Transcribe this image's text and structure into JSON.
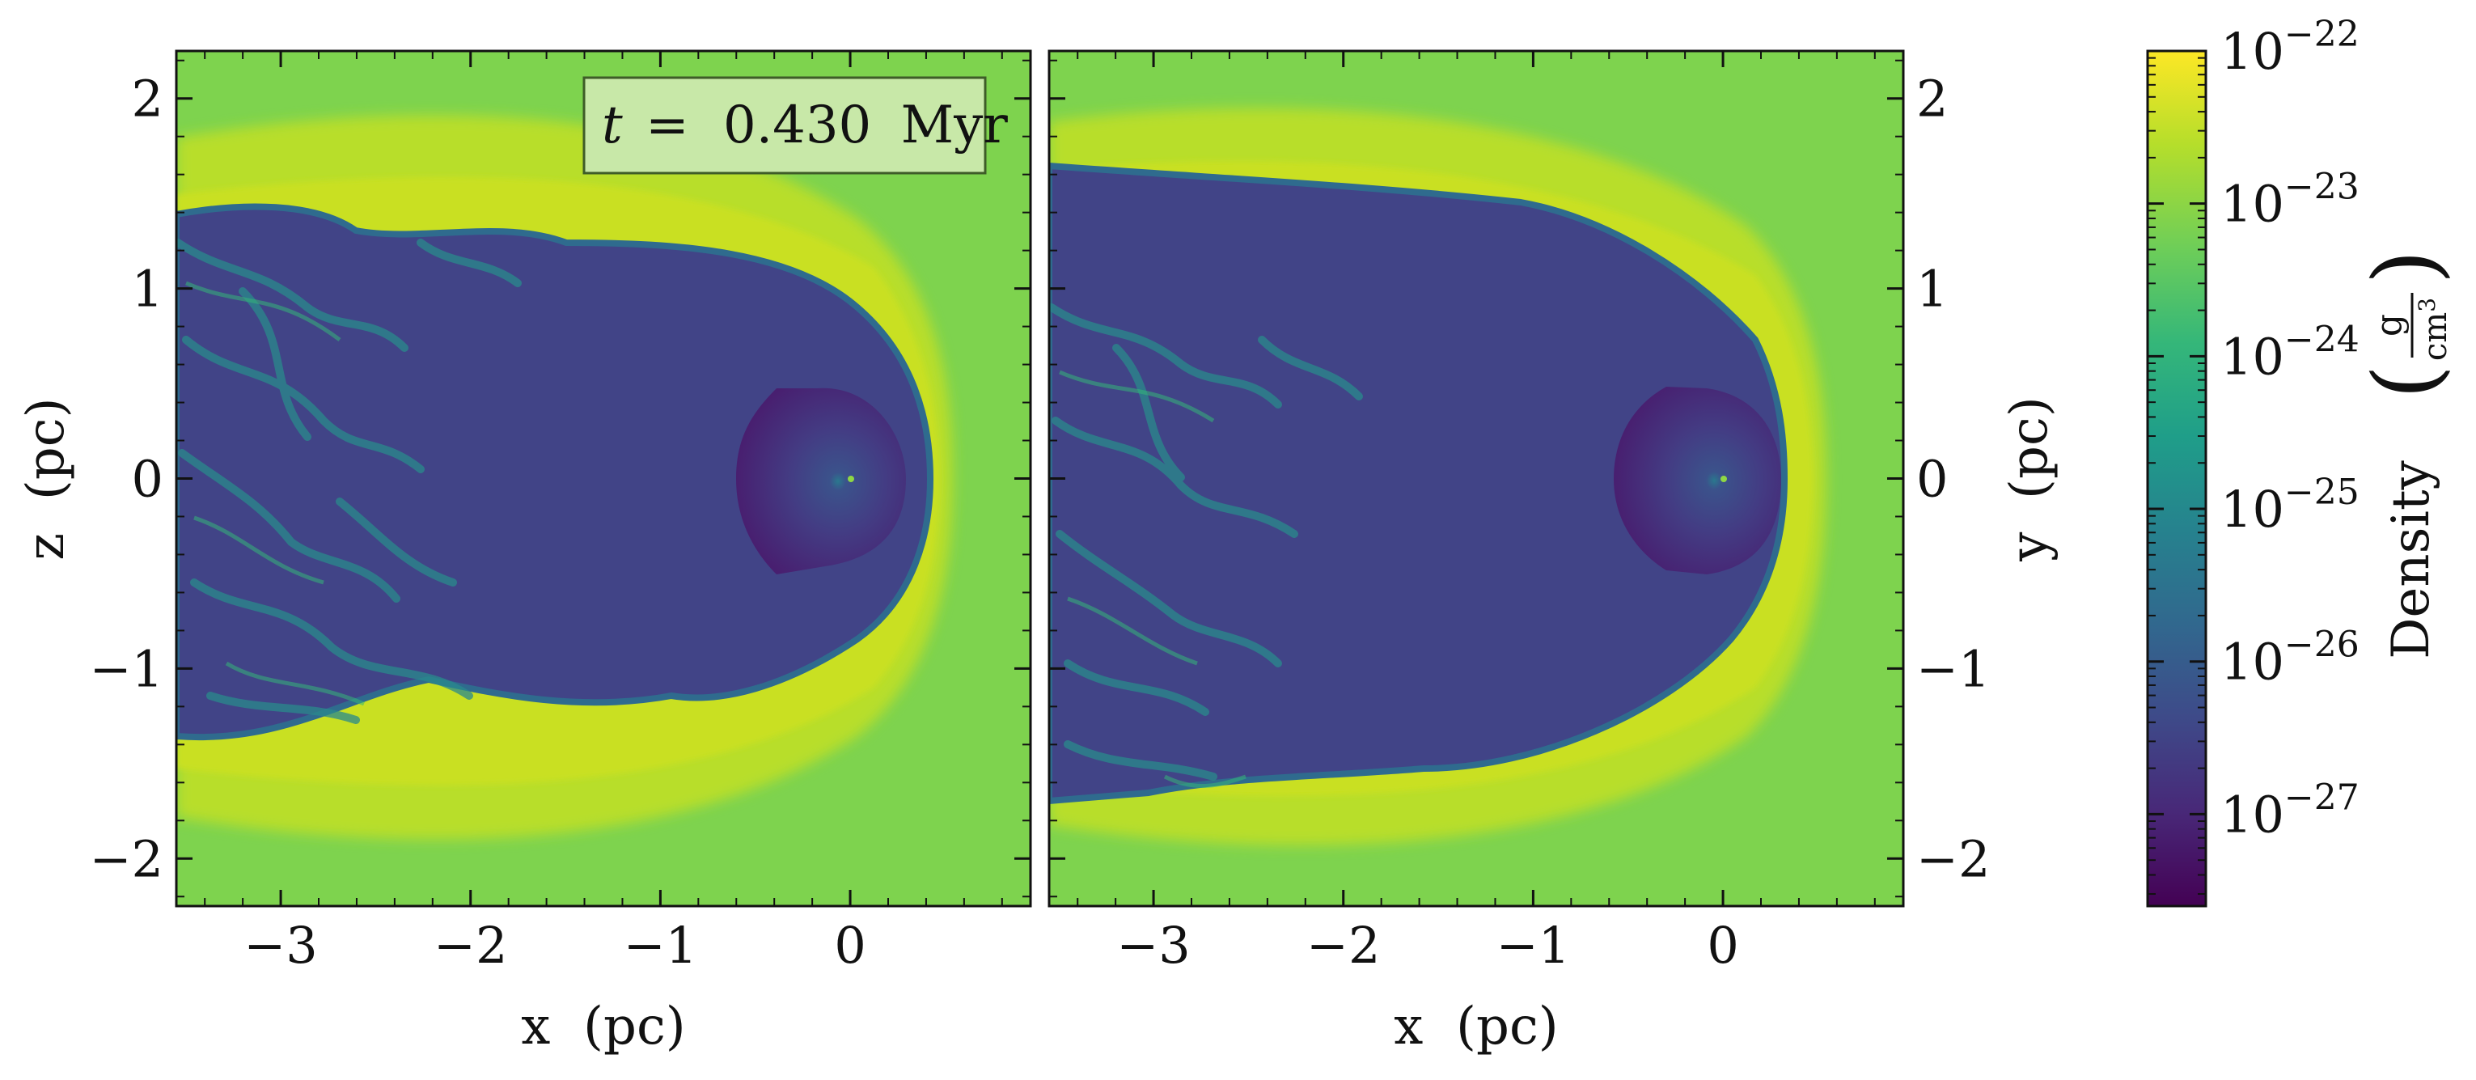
{
  "chart_data": [
    {
      "type": "heatmap",
      "panel": "left",
      "xlabel": "x  (pc)",
      "ylabel": "z  (pc)",
      "xlim": [
        -3.55,
        0.95
      ],
      "ylim": [
        -2.25,
        2.25
      ],
      "xticks": [
        -3,
        -2,
        -1,
        0
      ],
      "xtick_labels": [
        "−3",
        "−2",
        "−1",
        "0"
      ],
      "yticks": [
        -2,
        -1,
        0,
        1,
        2
      ],
      "ytick_labels": [
        "−2",
        "−1",
        "0",
        "1",
        "2"
      ],
      "annotation": {
        "var": "t",
        "eq": "=",
        "value": "0.430",
        "unit": "Myr"
      },
      "colormap": "viridis",
      "features": {
        "source_position": [
          0,
          0
        ],
        "inner_sphere_radius": 0.5,
        "bow_shock_apex_x": 0.55
      }
    },
    {
      "type": "heatmap",
      "panel": "right",
      "xlabel": "x  (pc)",
      "ylabel": "y  (pc)",
      "xlim": [
        -3.55,
        0.95
      ],
      "ylim": [
        -2.25,
        2.25
      ],
      "xticks": [
        -3,
        -2,
        -1,
        0
      ],
      "xtick_labels": [
        "−3",
        "−2",
        "−1",
        "0"
      ],
      "yticks": [
        -2,
        -1,
        0,
        1,
        2
      ],
      "ytick_labels": [
        "−2",
        "−1",
        "0",
        "1",
        "2"
      ],
      "colormap": "viridis",
      "features": {
        "source_position": [
          0,
          0
        ],
        "inner_sphere_radius": 0.5,
        "bow_shock_apex_x": 0.55
      }
    }
  ],
  "colorbar": {
    "label": "Density",
    "unit_num": "g",
    "unit_den": "cm",
    "unit_den_exp": "3",
    "scale": "log",
    "range": [
      2.5e-28,
      1e-22
    ],
    "ticks": [
      {
        "base": "10",
        "exp": "−22",
        "value": 1e-22
      },
      {
        "base": "10",
        "exp": "−23",
        "value": 1e-23
      },
      {
        "base": "10",
        "exp": "−24",
        "value": 1e-24
      },
      {
        "base": "10",
        "exp": "−25",
        "value": 1e-25
      },
      {
        "base": "10",
        "exp": "−26",
        "value": 1e-26
      },
      {
        "base": "10",
        "exp": "−27",
        "value": 1e-27
      }
    ],
    "colors": [
      "#440154",
      "#482878",
      "#3e4a89",
      "#31688e",
      "#26828e",
      "#1f9e89",
      "#35b779",
      "#6ece58",
      "#b5de2b",
      "#fde725"
    ]
  }
}
